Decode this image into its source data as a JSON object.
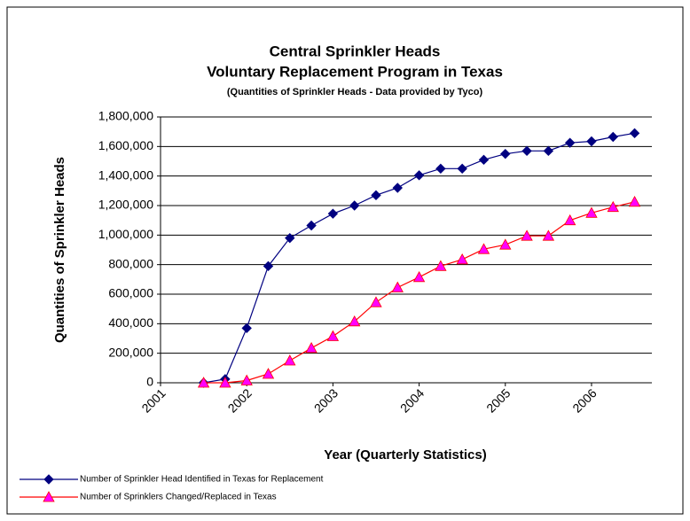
{
  "chart_data": {
    "type": "line",
    "title": [
      "Central Sprinkler Heads",
      "Voluntary Replacement Program in Texas"
    ],
    "subtitle": "(Quantities of Sprinkler Heads -  Data provided by Tyco)",
    "x_label": "Year (Quarterly Statistics)",
    "y_label": "Quantities of Sprinkler Heads",
    "x": [
      2001.5,
      2001.75,
      2002,
      2002.25,
      2002.5,
      2002.75,
      2003,
      2003.25,
      2003.5,
      2003.75,
      2004,
      2004.25,
      2004.5,
      2004.75,
      2005,
      2005.25,
      2005.5,
      2005.75,
      2006,
      2006.25,
      2006.5
    ],
    "xlim": [
      2001,
      2006.7
    ],
    "xticks": [
      2001,
      2002,
      2003,
      2004,
      2005,
      2006
    ],
    "ylim": [
      0,
      1800000
    ],
    "yticks": [
      0,
      {
        "value": 200000,
        "label": "200,000"
      },
      {
        "value": 400000,
        "label": "400,000"
      },
      {
        "value": 600000,
        "label": "600,000"
      },
      {
        "value": 800000,
        "label": "800,000"
      },
      {
        "value": 1000000,
        "label": "1,000,000"
      },
      {
        "value": 1200000,
        "label": "1,200,000"
      },
      {
        "value": 1400000,
        "label": "1,400,000"
      },
      {
        "value": 1600000,
        "label": "1,600,000"
      },
      {
        "value": 1800000,
        "label": "1,800,000"
      }
    ],
    "grid": true,
    "series": [
      {
        "name": "Number of Sprinkler Head Identified in Texas for Replacement",
        "color": "#000080",
        "marker": "diamond",
        "marker_color": "#000080",
        "values": [
          0,
          25000,
          370000,
          790000,
          980000,
          1065000,
          1145000,
          1200000,
          1270000,
          1320000,
          1405000,
          1450000,
          1450000,
          1510000,
          1550000,
          1570000,
          1570000,
          1625000,
          1635000,
          1665000,
          1690000
        ]
      },
      {
        "name": "Number of Sprinklers Changed/Replaced in Texas",
        "color": "#ff0000",
        "marker": "triangle",
        "marker_color": "#ff00ff",
        "values": [
          0,
          0,
          15000,
          60000,
          150000,
          235000,
          315000,
          415000,
          545000,
          645000,
          715000,
          790000,
          835000,
          905000,
          935000,
          995000,
          995000,
          1100000,
          1150000,
          1190000,
          1225000
        ]
      }
    ]
  }
}
